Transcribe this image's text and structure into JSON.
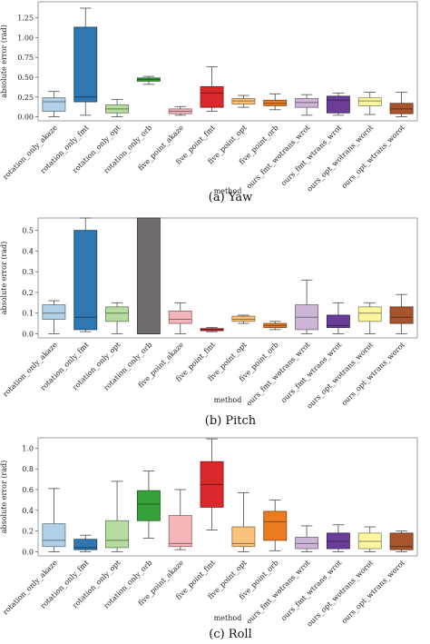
{
  "chart_data": [
    {
      "type": "box",
      "caption": "(a) Yaw",
      "xlabel": "method",
      "ylabel": "absolute error (rad)",
      "ylim": [
        -0.05,
        1.45
      ],
      "yticks": [
        "0.00",
        "0.25",
        "0.50",
        "0.75",
        "1.00",
        "1.25"
      ],
      "categories": [
        "rotation_only_akaze",
        "rotation_only_fmt",
        "rotation_only_opt",
        "rotation_only_orb",
        "five_point_akaze",
        "five_point_fmt",
        "five_point_opt",
        "five_point_orb",
        "ours_fmt_wotrans_wrot",
        "ours_fmt_wtrans_wrot",
        "ours_opt_wotrans_worot",
        "ours_opt_wtrans_worot"
      ],
      "colors": [
        "#b3d1e6",
        "#2e77b0",
        "#b6dc9f",
        "#36a33a",
        "#f6b5ba",
        "#d9272c",
        "#fbc27c",
        "#eb7d20",
        "#cdb5d8",
        "#6a3d98",
        "#fbf7a0",
        "#a8552e"
      ],
      "boxes": [
        {
          "min": 0.0,
          "q1": 0.07,
          "median": 0.19,
          "q3": 0.24,
          "max": 0.32
        },
        {
          "min": 0.02,
          "q1": 0.19,
          "median": 0.25,
          "q3": 1.13,
          "max": 1.37
        },
        {
          "min": 0.0,
          "q1": 0.05,
          "median": 0.1,
          "q3": 0.15,
          "max": 0.22
        },
        {
          "min": 0.41,
          "q1": 0.45,
          "median": 0.47,
          "q3": 0.49,
          "max": 0.51
        },
        {
          "min": 0.02,
          "q1": 0.04,
          "median": 0.07,
          "q3": 0.1,
          "max": 0.13
        },
        {
          "min": 0.07,
          "q1": 0.12,
          "median": 0.3,
          "q3": 0.38,
          "max": 0.63
        },
        {
          "min": 0.12,
          "q1": 0.16,
          "median": 0.2,
          "q3": 0.23,
          "max": 0.27
        },
        {
          "min": 0.09,
          "q1": 0.14,
          "median": 0.17,
          "q3": 0.21,
          "max": 0.29
        },
        {
          "min": 0.02,
          "q1": 0.12,
          "median": 0.18,
          "q3": 0.23,
          "max": 0.28
        },
        {
          "min": 0.02,
          "q1": 0.05,
          "median": 0.21,
          "q3": 0.26,
          "max": 0.3
        },
        {
          "min": 0.03,
          "q1": 0.14,
          "median": 0.2,
          "q3": 0.24,
          "max": 0.31
        },
        {
          "min": 0.0,
          "q1": 0.04,
          "median": 0.1,
          "q3": 0.17,
          "max": 0.31
        }
      ]
    },
    {
      "type": "box",
      "caption": "(b) Pitch",
      "xlabel": "method",
      "ylabel": "absolute error (rad)",
      "ylim": [
        -0.02,
        0.56
      ],
      "yticks": [
        "0.0",
        "0.1",
        "0.2",
        "0.3",
        "0.4",
        "0.5"
      ],
      "categories": [
        "rotation_only_akaze",
        "rotation_only_fmt",
        "rotation_only_opt",
        "rotation_only_orb",
        "five_point_akaze",
        "five_point_fmt",
        "five_point_opt",
        "five_point_orb",
        "ours_fmt_wotrans_wrot",
        "ours_fmt_wtrans_wrot",
        "ours_opt_wotrans_worot",
        "ours_opt_wtrans_worot"
      ],
      "colors": [
        "#b3d1e6",
        "#2e77b0",
        "#b6dc9f",
        "#706c6c",
        "#f6b5ba",
        "#d9272c",
        "#fbc27c",
        "#eb7d20",
        "#cdb5d8",
        "#6a3d98",
        "#fbf7a0",
        "#a8552e"
      ],
      "boxes": [
        {
          "min": 0.0,
          "q1": 0.07,
          "median": 0.1,
          "q3": 0.14,
          "max": 0.16
        },
        {
          "min": 0.01,
          "q1": 0.02,
          "median": 0.08,
          "q3": 0.5,
          "max": 0.56
        },
        {
          "min": 0.0,
          "q1": 0.06,
          "median": 0.1,
          "q3": 0.13,
          "max": 0.15
        },
        {
          "min": 0.0,
          "q1": 0.0,
          "median": 0.0,
          "q3": 0.56,
          "max": 0.56
        },
        {
          "min": 0.0,
          "q1": 0.05,
          "median": 0.07,
          "q3": 0.11,
          "max": 0.15
        },
        {
          "min": 0.01,
          "q1": 0.015,
          "median": 0.02,
          "q3": 0.025,
          "max": 0.03
        },
        {
          "min": 0.05,
          "q1": 0.06,
          "median": 0.07,
          "q3": 0.085,
          "max": 0.09
        },
        {
          "min": 0.02,
          "q1": 0.03,
          "median": 0.04,
          "q3": 0.05,
          "max": 0.06
        },
        {
          "min": 0.0,
          "q1": 0.02,
          "median": 0.08,
          "q3": 0.14,
          "max": 0.26
        },
        {
          "min": 0.0,
          "q1": 0.03,
          "median": 0.04,
          "q3": 0.09,
          "max": 0.15
        },
        {
          "min": 0.0,
          "q1": 0.06,
          "median": 0.1,
          "q3": 0.13,
          "max": 0.15
        },
        {
          "min": 0.0,
          "q1": 0.05,
          "median": 0.08,
          "q3": 0.13,
          "max": 0.19
        }
      ]
    },
    {
      "type": "box",
      "caption": "(c) Roll",
      "xlabel": "method",
      "ylabel": "absolute error (rad)",
      "ylim": [
        -0.04,
        1.1
      ],
      "yticks": [
        "0.0",
        "0.2",
        "0.4",
        "0.6",
        "0.8",
        "1.0"
      ],
      "categories": [
        "rotation_only_akaze",
        "rotation_only_fmt",
        "rotation_only_opt",
        "rotation_only_orb",
        "five_point_akaze",
        "five_point_fmt",
        "five_point_opt",
        "five_point_orb",
        "ours_fmt_wotrans_wrot",
        "ours_fmt_wtrans_wrot",
        "ours_opt_wotrans_worot",
        "ours_opt_wtrans_worot"
      ],
      "colors": [
        "#b3d1e6",
        "#2e77b0",
        "#b6dc9f",
        "#36a33a",
        "#f6b5ba",
        "#d9272c",
        "#fbc27c",
        "#eb7d20",
        "#cdb5d8",
        "#6a3d98",
        "#fbf7a0",
        "#a8552e"
      ],
      "boxes": [
        {
          "min": 0.0,
          "q1": 0.05,
          "median": 0.11,
          "q3": 0.27,
          "max": 0.61
        },
        {
          "min": 0.0,
          "q1": 0.02,
          "median": 0.04,
          "q3": 0.12,
          "max": 0.16
        },
        {
          "min": 0.0,
          "q1": 0.04,
          "median": 0.11,
          "q3": 0.3,
          "max": 0.68
        },
        {
          "min": 0.13,
          "q1": 0.3,
          "median": 0.46,
          "q3": 0.59,
          "max": 0.78
        },
        {
          "min": 0.02,
          "q1": 0.05,
          "median": 0.08,
          "q3": 0.35,
          "max": 0.6
        },
        {
          "min": 0.21,
          "q1": 0.43,
          "median": 0.65,
          "q3": 0.87,
          "max": 1.09
        },
        {
          "min": 0.0,
          "q1": 0.05,
          "median": 0.08,
          "q3": 0.24,
          "max": 0.57
        },
        {
          "min": 0.01,
          "q1": 0.11,
          "median": 0.29,
          "q3": 0.39,
          "max": 0.5
        },
        {
          "min": 0.0,
          "q1": 0.03,
          "median": 0.08,
          "q3": 0.14,
          "max": 0.25
        },
        {
          "min": 0.0,
          "q1": 0.03,
          "median": 0.1,
          "q3": 0.18,
          "max": 0.26
        },
        {
          "min": 0.0,
          "q1": 0.03,
          "median": 0.1,
          "q3": 0.18,
          "max": 0.24
        },
        {
          "min": 0.0,
          "q1": 0.02,
          "median": 0.05,
          "q3": 0.18,
          "max": 0.2
        }
      ]
    }
  ]
}
